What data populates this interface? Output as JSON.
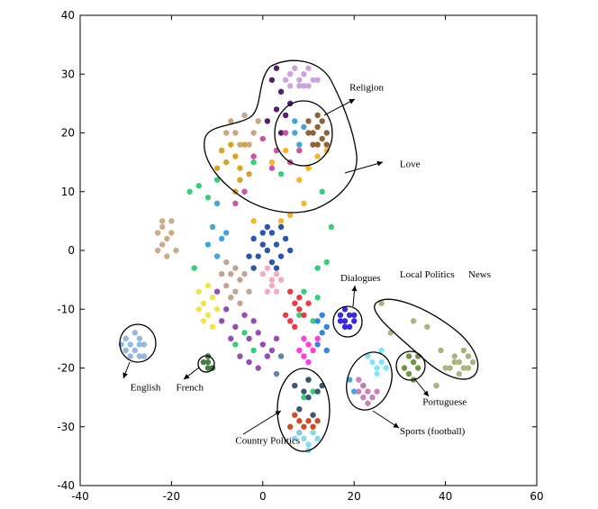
{
  "chart_data": {
    "type": "scatter",
    "title": "",
    "xlabel": "",
    "ylabel": "",
    "xlim": [
      -40,
      60
    ],
    "ylim": [
      -40,
      40
    ],
    "xticks": [
      -40,
      -20,
      0,
      20,
      40,
      60
    ],
    "yticks": [
      -40,
      -30,
      -20,
      -10,
      0,
      10,
      20,
      30,
      40
    ],
    "grid": false,
    "legend": "none",
    "series": [
      {
        "color": "#c9a0dc",
        "points": [
          [
            5,
            29
          ],
          [
            6,
            30
          ],
          [
            7,
            31
          ],
          [
            8,
            29
          ],
          [
            9,
            30
          ],
          [
            10,
            31
          ],
          [
            11,
            29
          ],
          [
            8,
            28
          ],
          [
            9,
            28
          ],
          [
            6,
            28
          ],
          [
            10,
            28
          ],
          [
            12,
            29
          ]
        ]
      },
      {
        "color": "#8b5a2b",
        "points": [
          [
            10,
            22
          ],
          [
            11,
            20
          ],
          [
            12,
            21
          ],
          [
            13,
            19
          ],
          [
            11,
            18
          ],
          [
            12,
            18
          ],
          [
            13,
            22
          ],
          [
            14,
            20
          ],
          [
            10,
            20
          ],
          [
            14,
            18
          ],
          [
            12,
            23
          ]
        ]
      },
      {
        "color": "#4b1560",
        "points": [
          [
            2,
            29
          ],
          [
            3,
            24
          ],
          [
            4,
            27
          ],
          [
            1,
            22
          ],
          [
            5,
            23
          ],
          [
            6,
            25
          ],
          [
            3,
            31
          ],
          [
            4,
            20
          ]
        ]
      },
      {
        "color": "#d4a017",
        "points": [
          [
            -8,
            15
          ],
          [
            -6,
            16
          ],
          [
            -5,
            14
          ],
          [
            -4,
            18
          ],
          [
            -7,
            18
          ],
          [
            -9,
            17
          ],
          [
            -5,
            12
          ],
          [
            -3,
            13
          ],
          [
            -10,
            14
          ],
          [
            -6,
            10
          ]
        ]
      },
      {
        "color": "#c8a27a",
        "points": [
          [
            -6,
            20
          ],
          [
            -5,
            18
          ],
          [
            -3,
            18
          ],
          [
            -7,
            22
          ],
          [
            -4,
            23
          ],
          [
            -2,
            20
          ],
          [
            -1,
            22
          ],
          [
            -8,
            20
          ]
        ]
      },
      {
        "color": "#f5b21c",
        "points": [
          [
            2,
            15
          ],
          [
            5,
            17
          ],
          [
            8,
            12
          ],
          [
            10,
            14
          ],
          [
            6,
            6
          ],
          [
            4,
            5
          ],
          [
            -2,
            5
          ],
          [
            12,
            16
          ],
          [
            14,
            17
          ],
          [
            9,
            8
          ]
        ]
      },
      {
        "color": "#c94a9a",
        "points": [
          [
            0,
            19
          ],
          [
            3,
            17
          ],
          [
            5,
            20
          ],
          [
            -2,
            16
          ],
          [
            6,
            15
          ],
          [
            2,
            14
          ],
          [
            -4,
            10
          ],
          [
            -6,
            8
          ],
          [
            8,
            17
          ]
        ]
      },
      {
        "color": "#3aa0d8",
        "points": [
          [
            8,
            18
          ],
          [
            7,
            20
          ],
          [
            9,
            21
          ],
          [
            7,
            22
          ],
          [
            -10,
            8
          ],
          [
            -11,
            4
          ],
          [
            -9,
            2
          ],
          [
            -12,
            1
          ],
          [
            -10,
            -1
          ],
          [
            -8,
            3
          ],
          [
            19,
            -22
          ],
          [
            20,
            -24
          ],
          [
            22,
            -23
          ]
        ]
      },
      {
        "color": "#2ecc71",
        "points": [
          [
            -10,
            12
          ],
          [
            -12,
            9
          ],
          [
            -14,
            11
          ],
          [
            -2,
            15
          ],
          [
            4,
            13
          ],
          [
            13,
            10
          ],
          [
            15,
            4
          ],
          [
            14,
            -2
          ],
          [
            12,
            -8
          ],
          [
            11,
            -12
          ],
          [
            8,
            -11
          ],
          [
            9,
            -7
          ],
          [
            -6,
            -16
          ],
          [
            -4,
            -14
          ],
          [
            -2,
            -17
          ],
          [
            10,
            -22
          ],
          [
            11,
            -24
          ],
          [
            9,
            -25
          ],
          [
            -15,
            -3
          ],
          [
            12,
            -3
          ],
          [
            -16,
            10
          ]
        ]
      },
      {
        "color": "#c8a882",
        "points": [
          [
            -23,
            3
          ],
          [
            -22,
            4
          ],
          [
            -21,
            2
          ],
          [
            -20,
            3
          ],
          [
            -22,
            1
          ],
          [
            -23,
            0
          ],
          [
            -21,
            -1
          ],
          [
            -19,
            0
          ],
          [
            -22,
            5
          ],
          [
            -20,
            5
          ]
        ]
      },
      {
        "color": "#1f4ea8",
        "points": [
          [
            -2,
            2
          ],
          [
            0,
            1
          ],
          [
            2,
            3
          ],
          [
            1,
            0
          ],
          [
            3,
            1
          ],
          [
            -1,
            -1
          ],
          [
            2,
            -2
          ],
          [
            4,
            -1
          ],
          [
            -3,
            -1
          ],
          [
            0,
            3
          ],
          [
            5,
            2
          ],
          [
            3,
            -3
          ],
          [
            1,
            4
          ],
          [
            -2,
            -3
          ],
          [
            6,
            0
          ],
          [
            4,
            4
          ]
        ]
      },
      {
        "color": "#f4a6b8",
        "points": [
          [
            1,
            -3
          ],
          [
            2,
            -5
          ],
          [
            3,
            -4
          ],
          [
            0,
            -4
          ],
          [
            4,
            -5
          ],
          [
            2,
            -6
          ],
          [
            1,
            -7
          ],
          [
            3,
            -7
          ]
        ]
      },
      {
        "color": "#bfa08a",
        "points": [
          [
            -8,
            -2
          ],
          [
            -7,
            -4
          ],
          [
            -6,
            -3
          ],
          [
            -5,
            -5
          ],
          [
            -8,
            -6
          ],
          [
            -6,
            -7
          ],
          [
            -4,
            -4
          ],
          [
            -7,
            -8
          ],
          [
            -3,
            -7
          ],
          [
            -9,
            -4
          ],
          [
            -5,
            -9
          ]
        ]
      },
      {
        "color": "#f0e442",
        "points": [
          [
            -14,
            -7
          ],
          [
            -13,
            -9
          ],
          [
            -12,
            -11
          ],
          [
            -11,
            -8
          ],
          [
            -13,
            -12
          ],
          [
            -12,
            -6
          ],
          [
            -10,
            -10
          ],
          [
            -14,
            -10
          ],
          [
            -11,
            -13
          ]
        ]
      },
      {
        "color": "#8e44ad",
        "points": [
          [
            -10,
            -7
          ],
          [
            -9,
            -12
          ],
          [
            -8,
            -10
          ],
          [
            -6,
            -13
          ],
          [
            -4,
            -11
          ],
          [
            -3,
            -15
          ],
          [
            -1,
            -14
          ],
          [
            0,
            -16
          ],
          [
            -2,
            -12
          ],
          [
            1,
            -18
          ],
          [
            2,
            -17
          ],
          [
            -5,
            -18
          ],
          [
            -3,
            -19
          ],
          [
            -1,
            -20
          ],
          [
            3,
            -15
          ],
          [
            -7,
            -15
          ]
        ]
      },
      {
        "color": "#e8333c",
        "points": [
          [
            7,
            -9
          ],
          [
            8,
            -10
          ],
          [
            6,
            -12
          ],
          [
            9,
            -11
          ],
          [
            8,
            -8
          ],
          [
            7,
            -13
          ],
          [
            5,
            -11
          ],
          [
            10,
            -9
          ],
          [
            6,
            -7
          ]
        ]
      },
      {
        "color": "#ff33dd",
        "points": [
          [
            9,
            -15
          ],
          [
            10,
            -16
          ],
          [
            11,
            -17
          ],
          [
            8,
            -17
          ],
          [
            10,
            -19
          ],
          [
            12,
            -15
          ],
          [
            9,
            -18
          ]
        ]
      },
      {
        "color": "#2b7de0",
        "points": [
          [
            12,
            -12
          ],
          [
            13,
            -14
          ],
          [
            14,
            -13
          ],
          [
            12,
            -16
          ],
          [
            14,
            -17
          ],
          [
            13,
            -11
          ]
        ]
      },
      {
        "color": "#5a7aa6",
        "points": [
          [
            -12,
            -18
          ],
          [
            -11,
            -20
          ],
          [
            3,
            -21
          ],
          [
            4,
            -18
          ]
        ]
      },
      {
        "color": "#8fb4e0",
        "points": [
          [
            -31,
            -16
          ],
          [
            -30,
            -15
          ],
          [
            -29,
            -16
          ],
          [
            -28,
            -17
          ],
          [
            -27,
            -15
          ],
          [
            -26,
            -16
          ],
          [
            -29,
            -18
          ],
          [
            -27,
            -18
          ],
          [
            -28,
            -14
          ],
          [
            -30,
            -17
          ],
          [
            -26,
            -18
          ],
          [
            -27,
            -16
          ]
        ]
      },
      {
        "color": "#3f7a3a",
        "points": [
          [
            -13,
            -19
          ],
          [
            -12,
            -19
          ],
          [
            -12,
            -20
          ],
          [
            -11,
            -20
          ],
          [
            -12,
            -18
          ]
        ]
      },
      {
        "color": "#2f1fe0",
        "points": [
          [
            17,
            -11
          ],
          [
            18,
            -12
          ],
          [
            19,
            -11
          ],
          [
            20,
            -12
          ],
          [
            18,
            -10
          ],
          [
            17,
            -12
          ],
          [
            19,
            -13
          ],
          [
            18,
            -13
          ],
          [
            20,
            -11
          ]
        ]
      },
      {
        "color": "#2f4f6f",
        "points": [
          [
            7,
            -23
          ],
          [
            9,
            -24
          ],
          [
            10,
            -25
          ],
          [
            8,
            -27
          ],
          [
            11,
            -28
          ],
          [
            12,
            -24
          ],
          [
            10,
            -22
          ],
          [
            13,
            -23
          ]
        ]
      },
      {
        "color": "#c8441a",
        "points": [
          [
            7,
            -28
          ],
          [
            8,
            -29
          ],
          [
            9,
            -30
          ],
          [
            10,
            -29
          ],
          [
            11,
            -30
          ],
          [
            12,
            -29
          ],
          [
            8,
            -31
          ],
          [
            6,
            -30
          ]
        ]
      },
      {
        "color": "#7fd8e8",
        "points": [
          [
            8,
            -31
          ],
          [
            9,
            -32
          ],
          [
            10,
            -33
          ],
          [
            11,
            -31
          ],
          [
            12,
            -32
          ],
          [
            7,
            -32
          ],
          [
            10,
            -34
          ]
        ]
      },
      {
        "color": "#6a8f3a",
        "points": [
          [
            32,
            -18
          ],
          [
            33,
            -19
          ],
          [
            34,
            -20
          ],
          [
            32,
            -21
          ],
          [
            33,
            -22
          ],
          [
            31,
            -20
          ],
          [
            34,
            -18
          ]
        ]
      },
      {
        "color": "#a7b07a",
        "points": [
          [
            26,
            -9
          ],
          [
            28,
            -14
          ],
          [
            33,
            -12
          ],
          [
            36,
            -13
          ],
          [
            39,
            -17
          ],
          [
            40,
            -20
          ],
          [
            42,
            -18
          ],
          [
            43,
            -19
          ],
          [
            44,
            -17
          ],
          [
            45,
            -18
          ],
          [
            44,
            -20
          ],
          [
            43,
            -21
          ],
          [
            42,
            -19
          ],
          [
            41,
            -20
          ],
          [
            45,
            -20
          ],
          [
            46,
            -19
          ],
          [
            38,
            -23
          ]
        ]
      },
      {
        "color": "#7de3f0",
        "points": [
          [
            23,
            -18
          ],
          [
            24,
            -19
          ],
          [
            25,
            -20
          ],
          [
            26,
            -19
          ],
          [
            25,
            -21
          ],
          [
            27,
            -20
          ],
          [
            26,
            -17
          ]
        ]
      },
      {
        "color": "#c77bb0",
        "points": [
          [
            21,
            -22
          ],
          [
            22,
            -23
          ],
          [
            23,
            -24
          ],
          [
            24,
            -25
          ],
          [
            22,
            -25
          ],
          [
            25,
            -24
          ],
          [
            23,
            -26
          ],
          [
            21,
            -24
          ]
        ]
      }
    ],
    "clusters": [
      {
        "label": "Religion",
        "label_x": 19,
        "label_y": 27.2
      },
      {
        "label": "Love",
        "label_x": 30,
        "label_y": 14.2
      },
      {
        "label": "Dialogues",
        "label_x": 17,
        "label_y": -5.2
      },
      {
        "label": "Local Politics",
        "label_x": 30,
        "label_y": -4.6
      },
      {
        "label": "News",
        "label_x": 45,
        "label_y": -4.6
      },
      {
        "label": "English",
        "label_x": -29,
        "label_y": -23.8
      },
      {
        "label": "French",
        "label_x": -19,
        "label_y": -23.8
      },
      {
        "label": "Portuguese",
        "label_x": 35,
        "label_y": -26.3
      },
      {
        "label": "Sports (football)",
        "label_x": 30,
        "label_y": -31.3
      },
      {
        "label": "Country Politics",
        "label_x": -6,
        "label_y": -32.9
      }
    ]
  }
}
